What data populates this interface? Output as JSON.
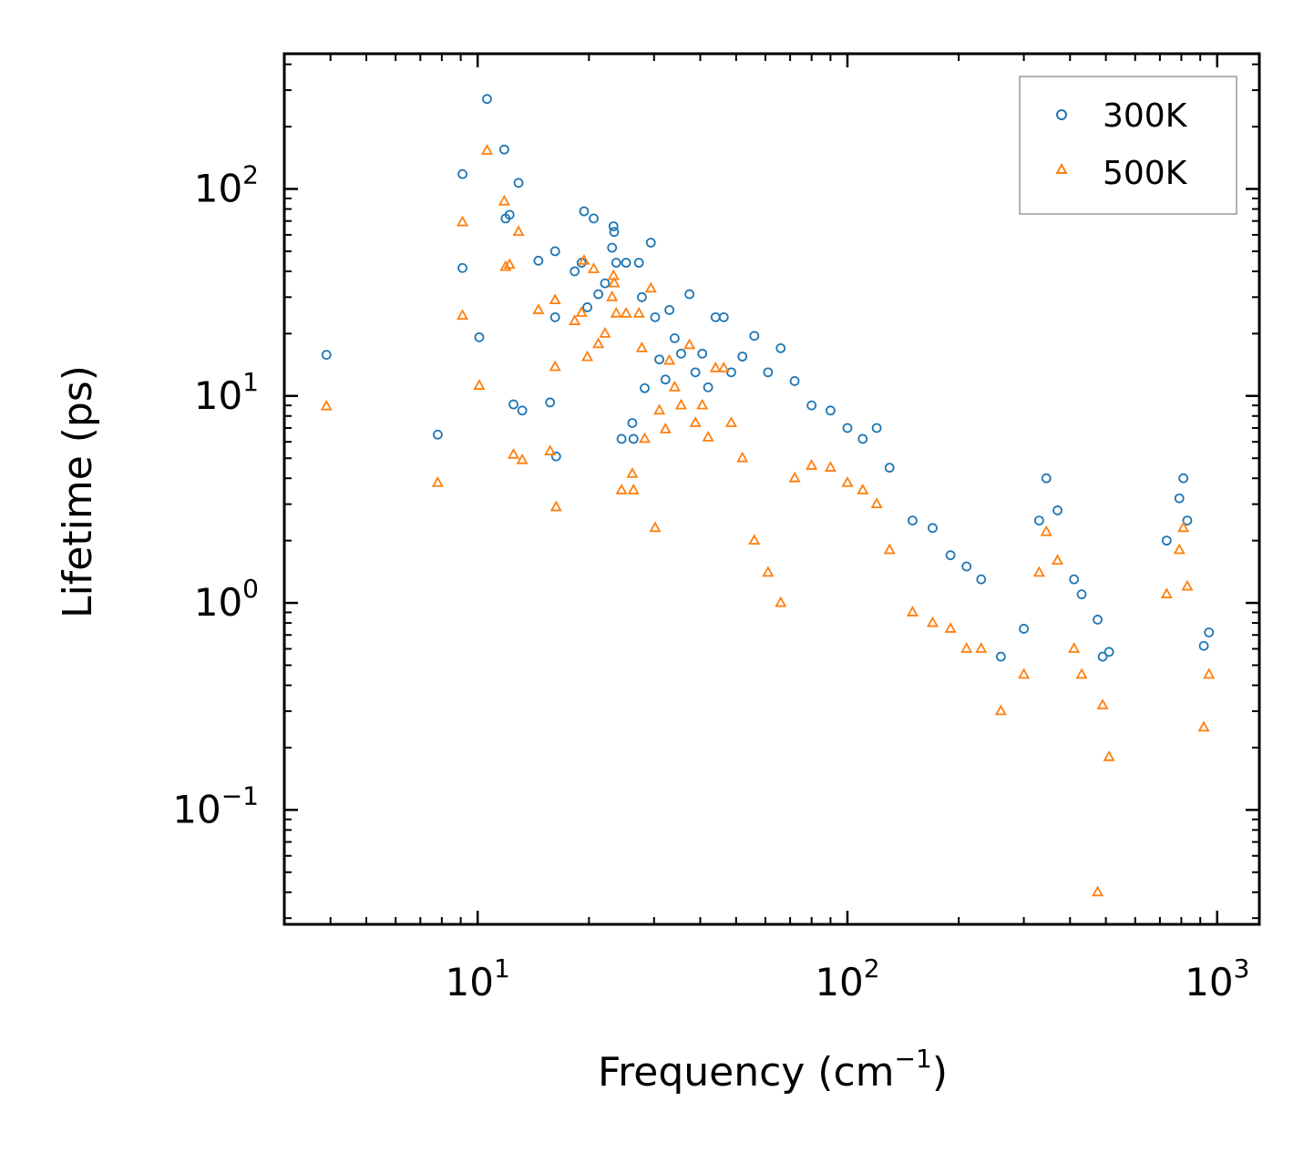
{
  "chart_data": {
    "type": "scatter",
    "title": "",
    "xlabel": "Frequency (cm",
    "xlabel_sup": "−1",
    "xlabel_tail": ")",
    "ylabel": "Lifetime (ps)",
    "xscale": "log",
    "yscale": "log",
    "xlim": [
      3,
      1300
    ],
    "ylim": [
      0.028,
      450
    ],
    "x_ticks": [
      {
        "value": 10,
        "base": "10",
        "exp": "1"
      },
      {
        "value": 100,
        "base": "10",
        "exp": "2"
      },
      {
        "value": 1000,
        "base": "10",
        "exp": "3"
      }
    ],
    "y_ticks": [
      {
        "value": 0.1,
        "base": "10",
        "exp": "−1"
      },
      {
        "value": 1,
        "base": "10",
        "exp": "0"
      },
      {
        "value": 10,
        "base": "10",
        "exp": "1"
      },
      {
        "value": 100,
        "base": "10",
        "exp": "2"
      }
    ],
    "legend_position": "top-right",
    "series": [
      {
        "name": "300K",
        "marker": "circle",
        "color": "#1f77b4",
        "points": [
          [
            3.9,
            15.8
          ],
          [
            7.8,
            6.5
          ],
          [
            9.1,
            118
          ],
          [
            9.1,
            41.5
          ],
          [
            10.1,
            19.2
          ],
          [
            10.6,
            272
          ],
          [
            11.8,
            155
          ],
          [
            11.9,
            72
          ],
          [
            12.2,
            75
          ],
          [
            12.5,
            9.1
          ],
          [
            12.9,
            107
          ],
          [
            13.2,
            8.5
          ],
          [
            14.6,
            45
          ],
          [
            15.7,
            9.3
          ],
          [
            16.2,
            50
          ],
          [
            16.2,
            24
          ],
          [
            16.3,
            5.1
          ],
          [
            18.3,
            40
          ],
          [
            19.1,
            44
          ],
          [
            19.4,
            78
          ],
          [
            19.8,
            26.8
          ],
          [
            20.6,
            72
          ],
          [
            21.2,
            31
          ],
          [
            22.1,
            35
          ],
          [
            23.1,
            52
          ],
          [
            23.3,
            66
          ],
          [
            23.4,
            62
          ],
          [
            23.7,
            44
          ],
          [
            24.5,
            6.2
          ],
          [
            25.2,
            44
          ],
          [
            26.2,
            7.4
          ],
          [
            26.4,
            6.2
          ],
          [
            27.3,
            44
          ],
          [
            27.8,
            30
          ],
          [
            28.3,
            10.9
          ],
          [
            29.4,
            55
          ],
          [
            30.2,
            24
          ],
          [
            31.0,
            15
          ],
          [
            32.2,
            12
          ],
          [
            33.0,
            26
          ],
          [
            34.1,
            19
          ],
          [
            35.5,
            16
          ],
          [
            37.4,
            31
          ],
          [
            38.8,
            13
          ],
          [
            40.5,
            16
          ],
          [
            42.0,
            11
          ],
          [
            44.0,
            24
          ],
          [
            46.3,
            24
          ],
          [
            48.5,
            13
          ],
          [
            52.0,
            15.5
          ],
          [
            56.0,
            19.5
          ],
          [
            61.0,
            13
          ],
          [
            66.0,
            17
          ],
          [
            72.0,
            11.8
          ],
          [
            80.0,
            9
          ],
          [
            90.0,
            8.5
          ],
          [
            100.0,
            7
          ],
          [
            110.0,
            6.2
          ],
          [
            120.0,
            7
          ],
          [
            130.0,
            4.5
          ],
          [
            150.0,
            2.5
          ],
          [
            170.0,
            2.3
          ],
          [
            190.0,
            1.7
          ],
          [
            210.0,
            1.5
          ],
          [
            230.0,
            1.3
          ],
          [
            260.0,
            0.55
          ],
          [
            300.0,
            0.75
          ],
          [
            330.0,
            2.5
          ],
          [
            345.0,
            4
          ],
          [
            370.0,
            2.8
          ],
          [
            410.0,
            1.3
          ],
          [
            430.0,
            1.1
          ],
          [
            475.0,
            0.83
          ],
          [
            490.0,
            0.55
          ],
          [
            510.0,
            0.58
          ],
          [
            730.0,
            2
          ],
          [
            790.0,
            3.2
          ],
          [
            810.0,
            4
          ],
          [
            830.0,
            2.5
          ],
          [
            920.0,
            0.62
          ],
          [
            950.0,
            0.72
          ]
        ]
      },
      {
        "name": "500K",
        "marker": "triangle",
        "color": "#ff7f0e",
        "points": [
          [
            3.9,
            8.9
          ],
          [
            7.8,
            3.8
          ],
          [
            9.1,
            69
          ],
          [
            9.1,
            24.4
          ],
          [
            10.1,
            11.2
          ],
          [
            10.6,
            153
          ],
          [
            11.8,
            87
          ],
          [
            11.9,
            42
          ],
          [
            12.2,
            43
          ],
          [
            12.5,
            5.2
          ],
          [
            12.9,
            62
          ],
          [
            13.2,
            4.9
          ],
          [
            14.6,
            26
          ],
          [
            15.7,
            5.4
          ],
          [
            16.2,
            29
          ],
          [
            16.2,
            13.8
          ],
          [
            16.3,
            2.9
          ],
          [
            18.3,
            23
          ],
          [
            19.1,
            25.2
          ],
          [
            19.4,
            45
          ],
          [
            19.8,
            15.4
          ],
          [
            20.6,
            41
          ],
          [
            21.2,
            17.8
          ],
          [
            22.1,
            20
          ],
          [
            23.1,
            30
          ],
          [
            23.3,
            38
          ],
          [
            23.4,
            35
          ],
          [
            23.7,
            25
          ],
          [
            24.5,
            3.5
          ],
          [
            25.2,
            25
          ],
          [
            26.2,
            4.2
          ],
          [
            26.4,
            3.5
          ],
          [
            27.3,
            25
          ],
          [
            27.8,
            17
          ],
          [
            28.3,
            6.2
          ],
          [
            29.4,
            33
          ],
          [
            30.2,
            2.3
          ],
          [
            31.0,
            8.5
          ],
          [
            32.2,
            6.9
          ],
          [
            33.0,
            14.8
          ],
          [
            34.1,
            11
          ],
          [
            35.5,
            9
          ],
          [
            37.4,
            17.6
          ],
          [
            38.8,
            7.4
          ],
          [
            40.5,
            9
          ],
          [
            42.0,
            6.3
          ],
          [
            44.0,
            13.6
          ],
          [
            46.3,
            13.6
          ],
          [
            48.5,
            7.4
          ],
          [
            52.0,
            5
          ],
          [
            56.0,
            2
          ],
          [
            61.0,
            1.4
          ],
          [
            66.0,
            1
          ],
          [
            72.0,
            4
          ],
          [
            80.0,
            4.6
          ],
          [
            90.0,
            4.5
          ],
          [
            100.0,
            3.8
          ],
          [
            110.0,
            3.5
          ],
          [
            120.0,
            3
          ],
          [
            130.0,
            1.8
          ],
          [
            150.0,
            0.9
          ],
          [
            170.0,
            0.8
          ],
          [
            190.0,
            0.75
          ],
          [
            210.0,
            0.6
          ],
          [
            230.0,
            0.6
          ],
          [
            260.0,
            0.3
          ],
          [
            300.0,
            0.45
          ],
          [
            330.0,
            1.4
          ],
          [
            345.0,
            2.2
          ],
          [
            370.0,
            1.6
          ],
          [
            410.0,
            0.6
          ],
          [
            430.0,
            0.45
          ],
          [
            475.0,
            0.04
          ],
          [
            490.0,
            0.32
          ],
          [
            510.0,
            0.18
          ],
          [
            730.0,
            1.1
          ],
          [
            790.0,
            1.8
          ],
          [
            810.0,
            2.3
          ],
          [
            830.0,
            1.2
          ],
          [
            920.0,
            0.25
          ],
          [
            950.0,
            0.45
          ]
        ]
      }
    ]
  }
}
